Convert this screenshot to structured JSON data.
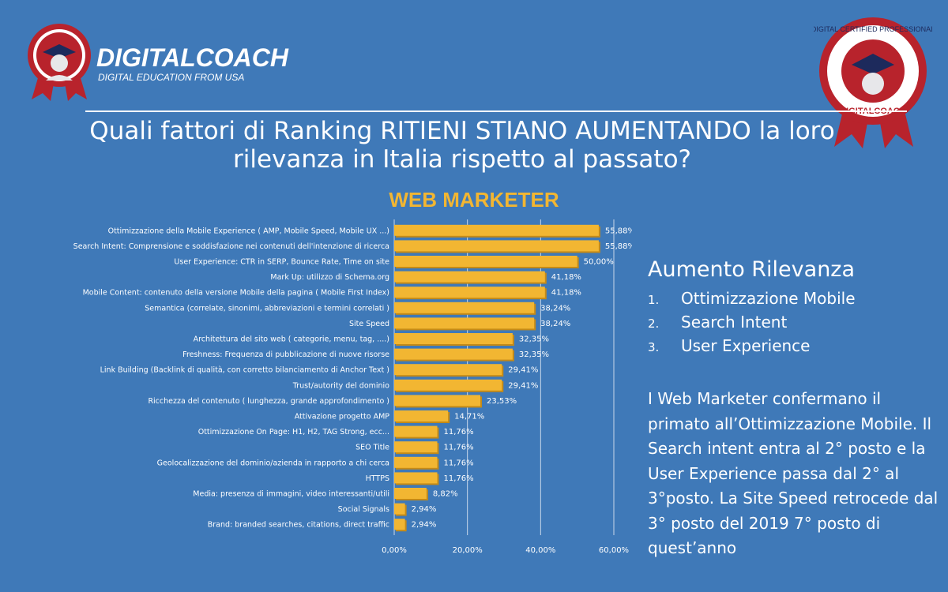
{
  "branding": {
    "logo_name": "DIGITALCOACH",
    "logo_tagline": "DIGITAL EDUCATION FROM USA",
    "badge_text": "DIGITAL CERTIFIED PROFESSIONAL",
    "badge_brand": "DIGITALCOACH"
  },
  "title": "Quali fattori di Ranking RITIENI STIANO AUMENTANDO la loro rilevanza in Italia rispetto al passato?",
  "chart_data": {
    "type": "bar",
    "orientation": "horizontal",
    "title": "WEB MARKETER",
    "categories": [
      "Ottimizzazione della Mobile Experience ( AMP, Mobile Speed, Mobile UX ...)",
      "Search Intent: Comprensione e soddisfazione nei contenuti dell'intenzione di ricerca",
      "User Experience: CTR in SERP, Bounce Rate, Time on site",
      "Mark Up: utilizzo di Schema.org",
      "Mobile Content: contenuto della versione Mobile della pagina ( Mobile First Index)",
      "Semantica (correlate, sinonimi, abbreviazioni e termini correlati )",
      "Site Speed",
      "Architettura del sito web ( categorie, menu, tag, ....)",
      "Freshness: Frequenza di pubblicazione di nuove risorse",
      "Link Building (Backlink di qualità, con corretto bilanciamento di Anchor Text )",
      "Trust/autority del dominio",
      "Ricchezza del contenuto ( lunghezza, grande approfondimento )",
      "Attivazione progetto AMP",
      "Ottimizzazione On Page: H1, H2, TAG Strong, ecc...",
      "SEO Title",
      "Geolocalizzazione del dominio/azienda in rapporto a chi cerca",
      "HTTPS",
      "Media: presenza di immagini, video interessanti/utili",
      "Social Signals",
      "Brand: branded searches, citations, direct traffic"
    ],
    "values": [
      55.88,
      55.88,
      50.0,
      41.18,
      41.18,
      38.24,
      38.24,
      32.35,
      32.35,
      29.41,
      29.41,
      23.53,
      14.71,
      11.76,
      11.76,
      11.76,
      11.76,
      8.82,
      2.94,
      2.94
    ],
    "value_labels": [
      "55,88%",
      "55,88%",
      "50,00%",
      "41,18%",
      "41,18%",
      "38,24%",
      "38,24%",
      "32,35%",
      "32,35%",
      "29,41%",
      "29,41%",
      "23,53%",
      "14,71%",
      "11,76%",
      "11,76%",
      "11,76%",
      "11,76%",
      "8,82%",
      "2,94%",
      "2,94%"
    ],
    "xlim": [
      0,
      60
    ],
    "xticks": [
      "0,00%",
      "20,00%",
      "40,00%",
      "60,00%"
    ],
    "xtick_values": [
      0,
      20,
      40,
      60
    ],
    "grid": true,
    "legend": "none",
    "colors": {
      "bar": "#f2b632",
      "bar_shadow": "#c48a17",
      "text": "#ffffff"
    }
  },
  "side": {
    "heading": "Aumento Rilevanza",
    "items": [
      {
        "num": "1.",
        "label": "Ottimizzazione Mobile"
      },
      {
        "num": "2.",
        "label": "Search Intent"
      },
      {
        "num": "3.",
        "label": "User Experience"
      }
    ],
    "note": "I Web Marketer confermano il primato all’Ottimizzazione Mobile. Il Search intent entra al 2° posto e la User Experience passa dal 2° al 3°posto. La Site Speed retrocede dal 3° posto del 2019 7° posto di quest’anno"
  }
}
